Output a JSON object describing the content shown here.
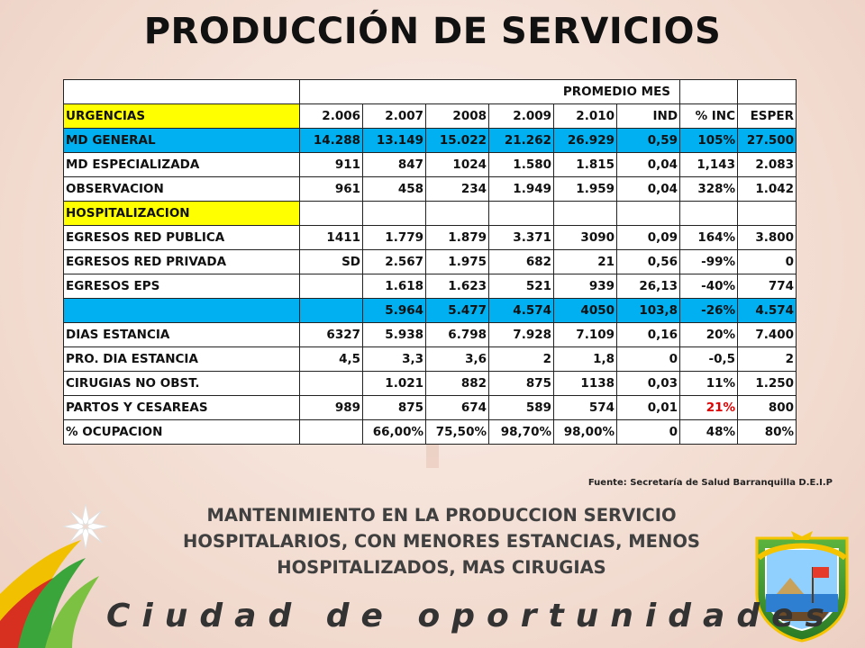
{
  "title": "PRODUCCIÓN DE SERVICIOS",
  "table": {
    "header_label": "PROMEDIO MES",
    "rows": [
      {
        "label": "URGENCIAS",
        "cells": [
          "2.006",
          "2.007",
          "2008",
          "2.009",
          "2.010",
          "IND",
          "% INC",
          "ESPER"
        ],
        "style": "yellow"
      },
      {
        "label": "MD GENERAL",
        "cells": [
          "14.288",
          "13.149",
          "15.022",
          "21.262",
          "26.929",
          "0,59",
          "105%",
          "27.500"
        ],
        "style": "blue"
      },
      {
        "label": "MD ESPECIALIZADA",
        "cells": [
          "911",
          "847",
          "1024",
          "1.580",
          "1.815",
          "0,04",
          "1,143",
          "2.083"
        ],
        "style": ""
      },
      {
        "label": "OBSERVACION",
        "cells": [
          "961",
          "458",
          "234",
          "1.949",
          "1.959",
          "0,04",
          "328%",
          "1.042"
        ],
        "style": ""
      },
      {
        "label": "HOSPITALIZACION",
        "cells": [
          "",
          "",
          "",
          "",
          "",
          "",
          "",
          ""
        ],
        "style": "yellow"
      },
      {
        "label": "EGRESOS RED PUBLICA",
        "cells": [
          "1411",
          "1.779",
          "1.879",
          "3.371",
          "3090",
          "0,09",
          "164%",
          "3.800"
        ],
        "style": ""
      },
      {
        "label": "EGRESOS RED PRIVADA",
        "cells": [
          "SD",
          "2.567",
          "1.975",
          "682",
          "21",
          "0,56",
          "-99%",
          "0"
        ],
        "style": ""
      },
      {
        "label": "EGRESOS EPS",
        "cells": [
          "",
          "1.618",
          "1.623",
          "521",
          "939",
          "26,13",
          "-40%",
          "774"
        ],
        "style": ""
      },
      {
        "label": "",
        "cells": [
          "",
          "5.964",
          "5.477",
          "4.574",
          "4050",
          "103,8",
          "-26%",
          "4.574"
        ],
        "style": "blue"
      },
      {
        "label": "DIAS ESTANCIA",
        "cells": [
          "6327",
          "5.938",
          "6.798",
          "7.928",
          "7.109",
          "0,16",
          "20%",
          "7.400"
        ],
        "style": ""
      },
      {
        "label": " PRO. DIA ESTANCIA",
        "cells": [
          "4,5",
          "3,3",
          "3,6",
          "2",
          "1,8",
          "0",
          "-0,5",
          "2"
        ],
        "style": ""
      },
      {
        "label": "CIRUGIAS NO OBST.",
        "cells": [
          "",
          "1.021",
          "882",
          "875",
          "1138",
          "0,03",
          "11%",
          "1.250"
        ],
        "style": ""
      },
      {
        "label": "PARTOS Y CESAREAS",
        "cells": [
          "989",
          "875",
          "674",
          "589",
          "574",
          "0,01",
          "21%",
          "800"
        ],
        "style": "",
        "red_col": 6
      },
      {
        "label": "% OCUPACION",
        "cells": [
          "",
          "66,00%",
          "75,50%",
          "98,70%",
          "98,00%",
          "0",
          "48%",
          "80%"
        ],
        "style": ""
      }
    ]
  },
  "source": "Fuente: Secretaría de Salud Barranquilla D.E.I.P",
  "message": "MANTENIMIENTO EN LA PRODUCCION SERVICIO HOSPITALARIOS, CON MENORES ESTANCIAS, MENOS HOSPITALIZADOS, MAS CIRUGIAS",
  "brand": "Ciudad de oportunidades",
  "colors": {
    "yellow": "#ffff00",
    "blue": "#00b0f0",
    "red": "#e00000"
  }
}
